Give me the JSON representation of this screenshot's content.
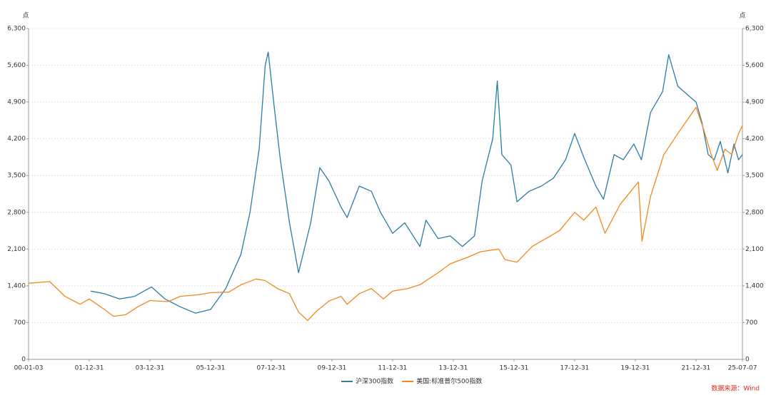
{
  "chart_data": {
    "type": "line",
    "y_label": "点",
    "y2_label": "点",
    "source": "数据来源：Wind",
    "xlim": [
      2000.0,
      2023.53
    ],
    "xticks": [
      {
        "value": 2000.0,
        "label": "00-01-03"
      },
      {
        "value": 2002.0,
        "label": "01-12-31"
      },
      {
        "value": 2004.0,
        "label": "03-12-31"
      },
      {
        "value": 2006.0,
        "label": "05-12-31"
      },
      {
        "value": 2008.0,
        "label": "07-12-31"
      },
      {
        "value": 2010.0,
        "label": "09-12-31"
      },
      {
        "value": 2012.0,
        "label": "11-12-31"
      },
      {
        "value": 2014.0,
        "label": "13-12-31"
      },
      {
        "value": 2016.0,
        "label": "15-12-31"
      },
      {
        "value": 2018.0,
        "label": "17-12-31"
      },
      {
        "value": 2020.0,
        "label": "19-12-31"
      },
      {
        "value": 2022.0,
        "label": "21-12-31"
      },
      {
        "value": 2023.53,
        "label": "25-07-07"
      }
    ],
    "ylim": [
      0,
      6300
    ],
    "yticks": [
      0,
      700,
      {
        "value": 1400,
        "label": "1,400"
      },
      {
        "value": 2100,
        "label": "2,100"
      },
      {
        "value": 2800,
        "label": "2,800"
      },
      {
        "value": 3500,
        "label": "3,500"
      },
      {
        "value": 4200,
        "label": "4,200"
      },
      {
        "value": 4900,
        "label": "4,900"
      },
      {
        "value": 5600,
        "label": "5,600"
      },
      {
        "value": 6300,
        "label": "6,300"
      }
    ],
    "y2lim": [
      0,
      6300
    ],
    "y2ticks": [
      0,
      700,
      {
        "value": 1400,
        "label": "1,400"
      },
      {
        "value": 2100,
        "label": "2,100"
      },
      {
        "value": 2800,
        "label": "2,800"
      },
      {
        "value": 3500,
        "label": "3,500"
      },
      {
        "value": 4200,
        "label": "4,200"
      },
      {
        "value": 4900,
        "label": "4,900"
      },
      {
        "value": 5600,
        "label": "5,600"
      },
      {
        "value": 6300,
        "label": "6,300"
      }
    ],
    "grid": true,
    "legend": "bottom",
    "series": [
      {
        "name": "沪深300指数",
        "color": "#2b7ba4",
        "x": [
          2002.05,
          2002.5,
          2003.0,
          2003.5,
          2004.05,
          2004.5,
          2005.0,
          2005.5,
          2006.0,
          2006.5,
          2007.0,
          2007.3,
          2007.6,
          2007.8,
          2007.9,
          2008.1,
          2008.3,
          2008.6,
          2008.9,
          2009.3,
          2009.6,
          2009.9,
          2010.3,
          2010.5,
          2010.9,
          2011.3,
          2011.6,
          2012.0,
          2012.4,
          2012.9,
          2013.1,
          2013.5,
          2013.9,
          2014.3,
          2014.7,
          2014.95,
          2015.3,
          2015.45,
          2015.6,
          2015.9,
          2016.1,
          2016.5,
          2016.9,
          2017.3,
          2017.7,
          2018.0,
          2018.3,
          2018.7,
          2018.95,
          2019.3,
          2019.6,
          2019.95,
          2020.2,
          2020.5,
          2020.9,
          2021.1,
          2021.4,
          2021.7,
          2022.0,
          2022.2,
          2022.4,
          2022.6,
          2022.8,
          2023.05,
          2023.25,
          2023.4,
          2023.53
        ],
        "values": [
          1300,
          1250,
          1150,
          1200,
          1380,
          1150,
          1000,
          880,
          950,
          1350,
          2000,
          2800,
          4000,
          5600,
          5850,
          4800,
          3800,
          2600,
          1650,
          2600,
          3650,
          3400,
          2900,
          2700,
          3300,
          3200,
          2800,
          2400,
          2600,
          2150,
          2650,
          2300,
          2350,
          2150,
          2350,
          3400,
          4200,
          5300,
          3900,
          3700,
          3000,
          3200,
          3300,
          3450,
          3800,
          4300,
          3850,
          3300,
          3050,
          3900,
          3800,
          4100,
          3800,
          4700,
          5100,
          5800,
          5200,
          5050,
          4900,
          4500,
          3900,
          3800,
          4150,
          3550,
          4100,
          3800,
          3900
        ]
      },
      {
        "name": "美国:标准普尔500指数",
        "color": "#f0891f",
        "axis": "y2",
        "x": [
          2000.0,
          2000.7,
          2001.2,
          2001.7,
          2002.0,
          2002.5,
          2002.8,
          2003.2,
          2003.6,
          2004.0,
          2004.6,
          2005.0,
          2005.6,
          2006.0,
          2006.6,
          2007.0,
          2007.5,
          2007.8,
          2008.2,
          2008.6,
          2008.9,
          2009.2,
          2009.5,
          2009.9,
          2010.3,
          2010.5,
          2010.9,
          2011.3,
          2011.7,
          2012.0,
          2012.5,
          2012.9,
          2013.5,
          2013.9,
          2014.5,
          2014.9,
          2015.5,
          2015.7,
          2016.1,
          2016.6,
          2016.9,
          2017.5,
          2018.0,
          2018.3,
          2018.7,
          2019.0,
          2019.5,
          2020.1,
          2020.22,
          2020.5,
          2020.94,
          2021.4,
          2022.0,
          2022.24,
          2022.5,
          2022.7,
          2022.95,
          2023.18,
          2023.4,
          2023.53
        ],
        "values": [
          1450,
          1480,
          1200,
          1050,
          1150,
          950,
          820,
          850,
          1000,
          1120,
          1100,
          1200,
          1230,
          1270,
          1280,
          1420,
          1530,
          1500,
          1350,
          1250,
          900,
          740,
          920,
          1110,
          1200,
          1050,
          1250,
          1350,
          1150,
          1300,
          1350,
          1420,
          1650,
          1820,
          1950,
          2050,
          2100,
          1900,
          1850,
          2150,
          2250,
          2450,
          2800,
          2650,
          2900,
          2400,
          2950,
          3380,
          2250,
          3100,
          3900,
          4300,
          4800,
          4400,
          3900,
          3600,
          4000,
          3900,
          4300,
          4450
        ]
      }
    ]
  }
}
